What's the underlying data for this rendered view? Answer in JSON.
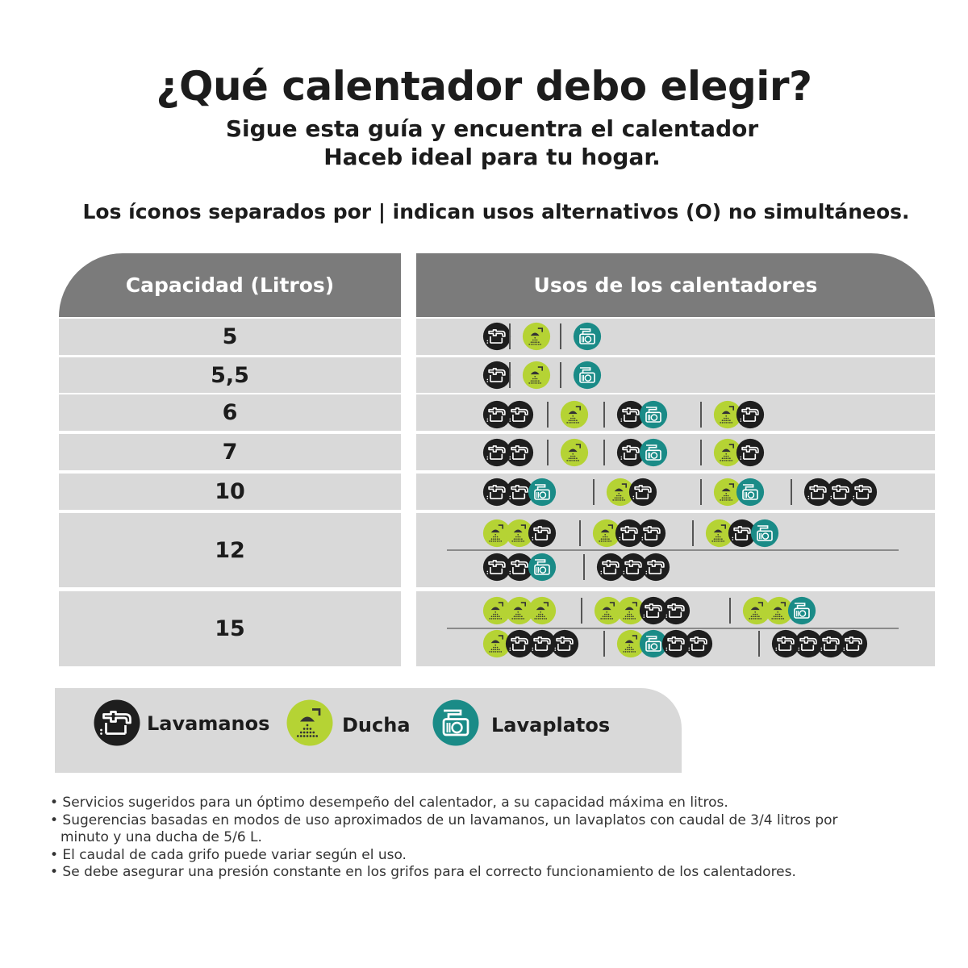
{
  "header": {
    "title": "¿Qué calentador debo elegir?",
    "subtitle_line1": "Sigue esta guía y encuentra el calentador",
    "subtitle_line2": "Haceb ideal para tu hogar.",
    "note": "Los íconos separados por | indican usos alternativos (O) no simultáneos."
  },
  "table": {
    "header_capacity": "Capacidad (Litros)",
    "header_uses": "Usos de los calentadores",
    "rows": [
      {
        "capacity": "5",
        "lines": [
          [
            "L",
            "|",
            "D",
            "|",
            "P"
          ]
        ]
      },
      {
        "capacity": "5,5",
        "lines": [
          [
            "L",
            "|",
            "D",
            "|",
            "P"
          ]
        ]
      },
      {
        "capacity": "6",
        "lines": [
          [
            "L L",
            "|",
            "D",
            "|",
            "L P",
            "|",
            "D L"
          ]
        ]
      },
      {
        "capacity": "7",
        "lines": [
          [
            "L L",
            "|",
            "D",
            "|",
            "L P",
            "|",
            "D L"
          ]
        ]
      },
      {
        "capacity": "10",
        "lines": [
          [
            "L L P",
            "|",
            "D L",
            "|",
            "D P",
            "|",
            "L L L"
          ]
        ]
      },
      {
        "capacity": "12",
        "lines": [
          [
            "D D L",
            "|",
            "D L L",
            "|",
            "D L P"
          ],
          [
            "L L P",
            "|",
            "L L L"
          ]
        ]
      },
      {
        "capacity": "15",
        "lines": [
          [
            "D D D",
            "|",
            "D D L L",
            "|",
            "D D P"
          ],
          [
            "D L L L",
            "|",
            "D P L L",
            "|",
            "L L L L"
          ]
        ]
      }
    ]
  },
  "legend": {
    "items": [
      {
        "icon": "lavamanos-icon",
        "label": "Lavamanos"
      },
      {
        "icon": "ducha-icon",
        "label": "Ducha"
      },
      {
        "icon": "lavaplatos-icon",
        "label": "Lavaplatos"
      }
    ]
  },
  "colors": {
    "lavamanos": "#1e1e1e",
    "ducha": "#b5d334",
    "lavaplatos": "#1a8b87",
    "header": "#7b7b7b",
    "row": "#d9d9d9"
  },
  "notes": [
    "• Servicios sugeridos para un óptimo desempeño del calentador, a su capacidad máxima en litros.",
    "• Sugerencias basadas en modos de uso aproximados de un lavamanos, un lavaplatos con caudal de 3/4 litros por minuto y una ducha de 5/6 L.",
    "• El caudal de cada grifo puede variar según el uso.",
    "• Se debe asegurar una presión constante en los grifos para el correcto funcionamiento de los calentadores."
  ]
}
